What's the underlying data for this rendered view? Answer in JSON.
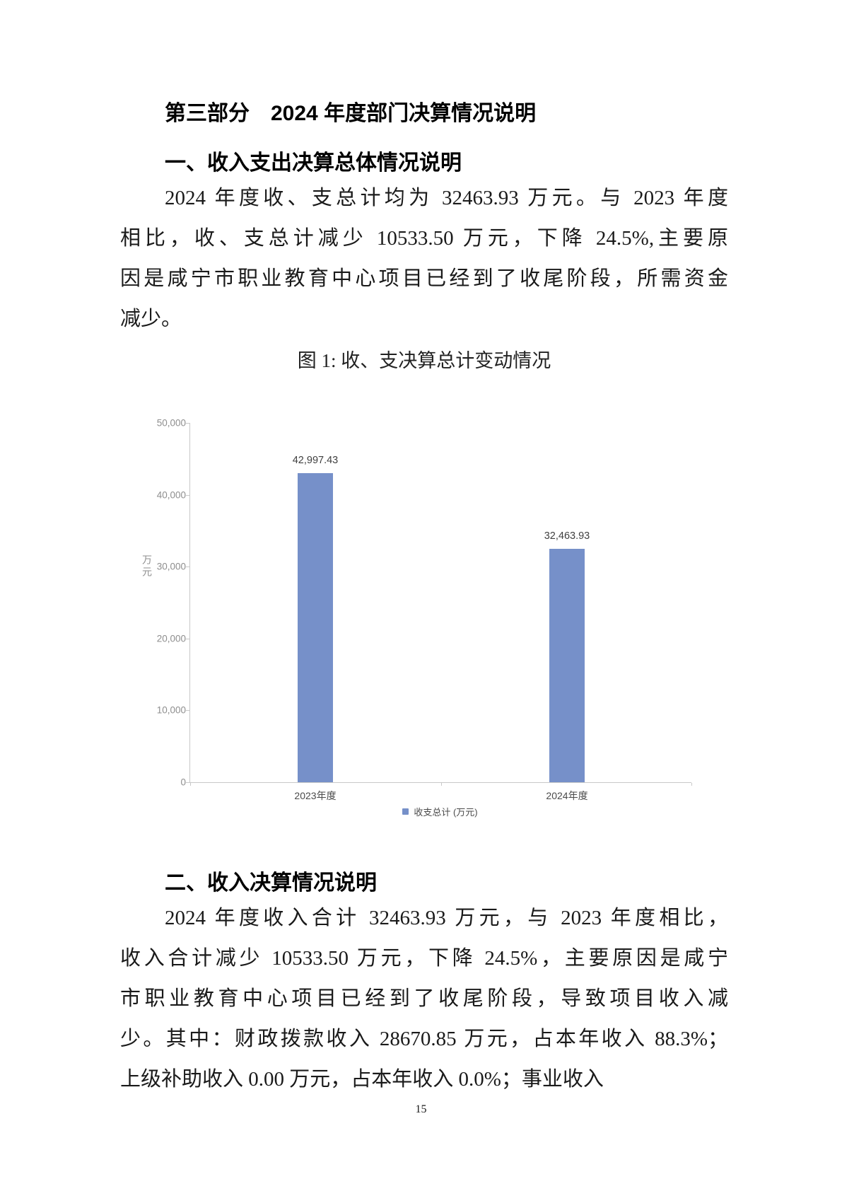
{
  "page": {
    "number": "15"
  },
  "document": {
    "title": "第三部分　2024 年度部门决算情况说明"
  },
  "sections": [
    {
      "heading": "一、收入支出决算总体情况说明",
      "lines": [
        {
          "text": "2024 年度收、支总计均为 32463.93 万元。与 2023 年度",
          "indent": true,
          "fill": true
        },
        {
          "text": "相比，收、支总计减少 10533.50 万元，下降 24.5%,主要原",
          "indent": false,
          "fill": true
        },
        {
          "text": "因是咸宁市职业教育中心项目已经到了收尾阶段，所需资金",
          "indent": false,
          "fill": true
        },
        {
          "text": "减少。",
          "indent": false,
          "fill": false
        }
      ]
    },
    {
      "heading": "二、收入决算情况说明",
      "lines": [
        {
          "text": "2024 年度收入合计 32463.93 万元，与 2023 年度相比，",
          "indent": true,
          "fill": true
        },
        {
          "text": "收入合计减少 10533.50 万元，下降 24.5%，主要原因是咸宁",
          "indent": false,
          "fill": true
        },
        {
          "text": "市职业教育中心项目已经到了收尾阶段，导致项目收入减",
          "indent": false,
          "fill": true
        },
        {
          "text": "少。其中：财政拨款收入 28670.85 万元，占本年收入 88.3%；",
          "indent": false,
          "fill": true
        },
        {
          "text": "上级补助收入 0.00 万元，占本年收入 0.0%；事业收入",
          "indent": false,
          "fill": false
        }
      ]
    }
  ],
  "figure": {
    "title": "图 1: 收、支决算总计变动情况"
  },
  "chart_data": {
    "type": "bar",
    "title": "图 1: 收、支决算总计变动情况",
    "categories": [
      "2023年度",
      "2024年度"
    ],
    "values": [
      42997.43,
      32463.93
    ],
    "value_labels": [
      "42,997.43",
      "32,463.93"
    ],
    "xlabel": "",
    "ylabel": "万元",
    "ylim": [
      0,
      50000
    ],
    "ytick_step": 10000,
    "ytick_labels": [
      "50,000",
      "40,000",
      "30,000",
      "20,000",
      "10,000",
      "0"
    ],
    "grid": false,
    "bar_color": "#7690C9",
    "legend_position": "bottom",
    "legend": [
      {
        "label": "收支总计 (万元)",
        "color": "#7690C9"
      }
    ]
  },
  "colors": {
    "bar": "#7690C9",
    "axis_line": "#C8C8C8",
    "ytick_text": "#8E8E8E",
    "xtick_text": "#4A4A4A",
    "body_text": "#1A1A1A"
  }
}
